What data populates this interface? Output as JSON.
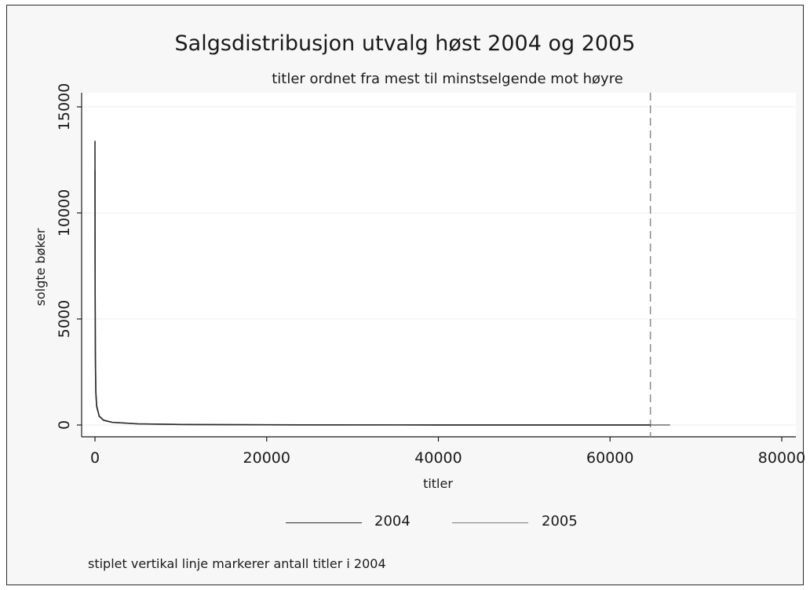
{
  "chart_data": {
    "type": "line",
    "title": "Salgsdistribusjon utvalg høst 2004 og 2005",
    "subtitle": "titler ordnet fra mest til minstselgende mot høyre",
    "xlabel": "titler",
    "ylabel": "solgte bøker",
    "xlim": [
      0,
      80000
    ],
    "ylim": [
      0,
      15000
    ],
    "xticks": [
      0,
      20000,
      40000,
      60000,
      80000
    ],
    "yticks": [
      0,
      5000,
      10000,
      15000
    ],
    "xtick_labels": [
      "0",
      "20000",
      "40000",
      "60000",
      "80000"
    ],
    "ytick_labels": [
      "0",
      "5000",
      "10000",
      "15000"
    ],
    "grid": true,
    "legend_placement": "bottom",
    "series": [
      {
        "name": "2004",
        "color": "#2b2b2b",
        "x": [
          1,
          5,
          10,
          20,
          50,
          100,
          200,
          500,
          1000,
          2000,
          5000,
          10000,
          20000,
          40000,
          64700
        ],
        "y": [
          13400,
          11800,
          9500,
          6200,
          3200,
          1600,
          900,
          420,
          230,
          130,
          55,
          25,
          10,
          3,
          1
        ]
      },
      {
        "name": "2005",
        "color": "#7a7a7a",
        "x": [
          1,
          5,
          10,
          20,
          50,
          100,
          200,
          500,
          1000,
          2000,
          5000,
          10000,
          20000,
          40000,
          67000
        ],
        "y": [
          12000,
          10500,
          8600,
          5600,
          2900,
          1450,
          850,
          400,
          220,
          125,
          52,
          24,
          9,
          3,
          1
        ]
      }
    ],
    "reference_line": {
      "x": 64700,
      "style": "dashed",
      "color": "#8a8a8a"
    },
    "caption": "stiplet vertikal linje markerer antall titler i 2004"
  }
}
